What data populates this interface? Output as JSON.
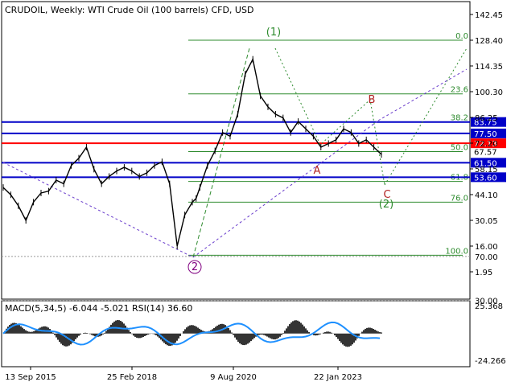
{
  "chart_data": {
    "type": "line",
    "title": "CRUDOIL, Weekly:  WTI Crude Oil (100 barrels) CFD, USD",
    "price_axis": {
      "ticks": [
        "142.45",
        "128.40",
        "114.35",
        "100.30",
        "86.25",
        "72.20",
        "58.15",
        "44.10",
        "30.05",
        "16.00",
        "1.95"
      ],
      "ylim": [
        1.95,
        142.45
      ]
    },
    "time_axis": {
      "labels": [
        "13 Sep 2015",
        "25 Feb 2018",
        "9 Aug 2020",
        "22 Jan 2023"
      ]
    },
    "horizontal_levels": [
      {
        "value": 83.75,
        "label": "83.75",
        "color": "#0000c8"
      },
      {
        "value": 77.5,
        "label": "77.50",
        "color": "#0000c8"
      },
      {
        "value": 72.13,
        "label": "72.13",
        "color": "#ff0000"
      },
      {
        "value": 61.5,
        "label": "61.50",
        "color": "#0000c8"
      },
      {
        "value": 53.6,
        "label": "53.60",
        "color": "#0000c8"
      }
    ],
    "fibonacci": {
      "color": "#2e8b2e",
      "levels": [
        {
          "label": "0.0",
          "price": 128.4
        },
        {
          "label": "23.6",
          "price": 99.1
        },
        {
          "label": "38.2",
          "price": 83.8
        },
        {
          "label": "50.0",
          "price": 67.57
        },
        {
          "label": "61.8",
          "price": 51.3
        },
        {
          "label": "76.0",
          "price": 40.0
        },
        {
          "label": "100.0",
          "price": 11.0
        }
      ]
    },
    "current_price_label": "67.57",
    "wave_labels": [
      {
        "text": "(1)",
        "color": "#2e8b2e"
      },
      {
        "text": "2",
        "color": "#800080"
      },
      {
        "text": "B",
        "color": "#b22222"
      },
      {
        "text": "A",
        "color": "#b22222"
      },
      {
        "text": "C",
        "color": "#b22222"
      },
      {
        "text": "(2)",
        "color": "#2e8b2e"
      }
    ],
    "indicator": {
      "title": "MACD(5,34,5) -6.044 -5.021 RSI(14) 36.60",
      "ticks": [
        "25.368",
        "70.00",
        "30.00",
        "-24.266"
      ]
    },
    "price_series": {
      "x": [
        0.0,
        0.02,
        0.04,
        0.06,
        0.08,
        0.1,
        0.12,
        0.14,
        0.16,
        0.18,
        0.2,
        0.22,
        0.24,
        0.26,
        0.28,
        0.3,
        0.32,
        0.34,
        0.36,
        0.38,
        0.4,
        0.42,
        0.44,
        0.46,
        0.48,
        0.5,
        0.51,
        0.52,
        0.54,
        0.56,
        0.58,
        0.6,
        0.62,
        0.64,
        0.66,
        0.68,
        0.7,
        0.72,
        0.74,
        0.76,
        0.78,
        0.8,
        0.82,
        0.84,
        0.86,
        0.88,
        0.9,
        0.92,
        0.94,
        0.96,
        0.98,
        1.0
      ],
      "y": [
        48,
        44,
        38,
        30,
        40,
        45,
        46,
        52,
        50,
        60,
        64,
        70,
        58,
        50,
        54,
        57,
        59,
        57,
        54,
        56,
        60,
        62,
        50,
        16,
        33,
        40,
        42,
        48,
        60,
        68,
        78,
        76,
        88,
        110,
        118,
        98,
        92,
        88,
        86,
        78,
        84,
        80,
        76,
        70,
        72,
        74,
        80,
        78,
        72,
        74,
        70,
        66
      ]
    }
  }
}
